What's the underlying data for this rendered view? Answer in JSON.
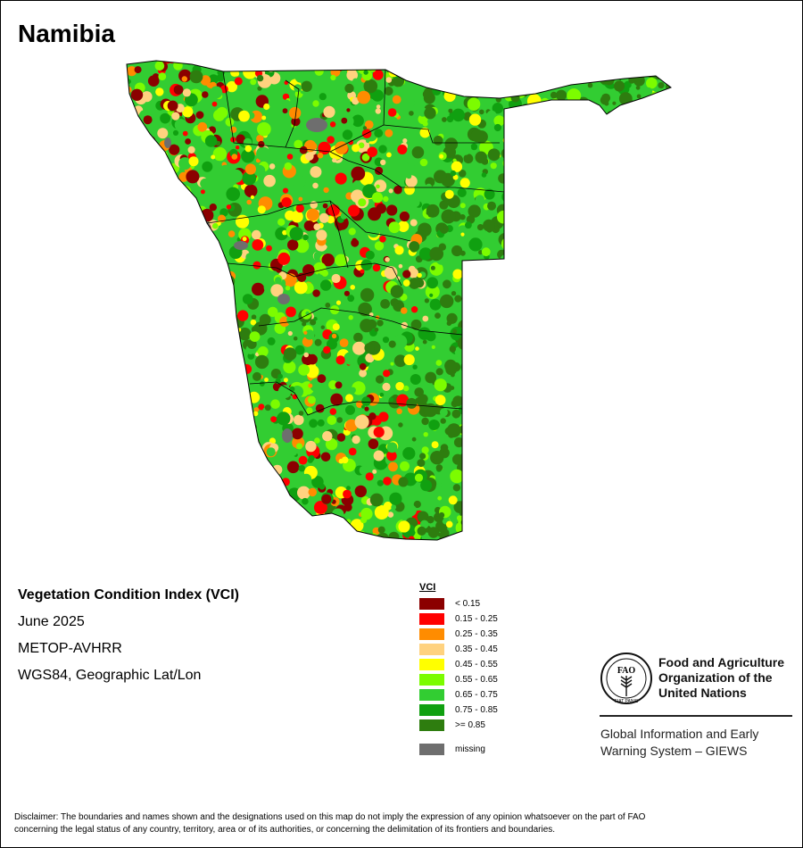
{
  "title": "Namibia",
  "info": {
    "index_name": "Vegetation Condition Index (VCI)",
    "period": "June 2025",
    "sensor": "METOP-AVHRR",
    "projection": "WGS84, Geographic Lat/Lon"
  },
  "legend": {
    "title": "VCI",
    "classes": [
      {
        "label": "< 0.15",
        "color": "#8b0000"
      },
      {
        "label": "0.15 - 0.25",
        "color": "#ff0000"
      },
      {
        "label": "0.25 - 0.35",
        "color": "#ff8c00"
      },
      {
        "label": "0.35 - 0.45",
        "color": "#ffd27f"
      },
      {
        "label": "0.45 - 0.55",
        "color": "#ffff00"
      },
      {
        "label": "0.55 - 0.65",
        "color": "#7cfc00"
      },
      {
        "label": "0.65 - 0.75",
        "color": "#32cd32"
      },
      {
        "label": "0.75 - 0.85",
        "color": "#10a010"
      },
      {
        "label": ">= 0.85",
        "color": "#2e7d0f"
      }
    ],
    "missing": {
      "label": "missing",
      "color": "#6e6e6e"
    }
  },
  "logo": {
    "acronym": "FAO",
    "motto": "FIAT PANIS",
    "org_lines": [
      "Food and Agriculture",
      "Organization of the",
      "United Nations"
    ],
    "system_lines": [
      "Global Information and Early",
      "Warning System – GIEWS"
    ]
  },
  "disclaimer_lines": [
    "Disclaimer: The boundaries and names shown and the designations used on this map do not imply the expression of any opinion whatsoever on the part of FAO",
    "concerning the legal status of any country, territory, area or of its authorities, or concerning the delimitation of its frontiers and boundaries."
  ]
}
